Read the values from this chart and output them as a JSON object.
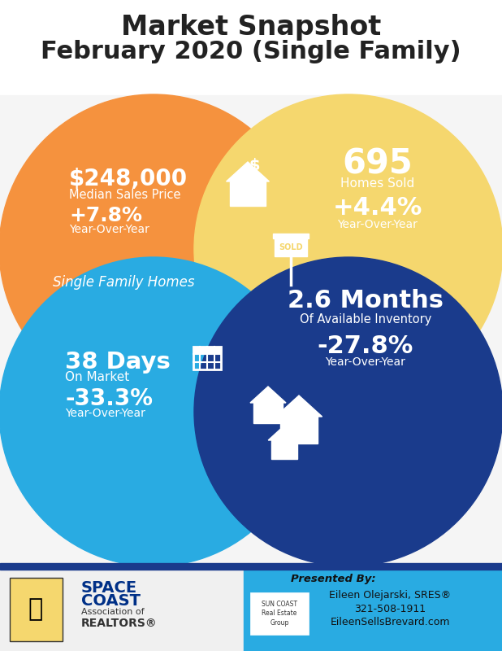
{
  "title_line1": "Market Snapshot",
  "title_line2": "February 2020 (Single Family)",
  "title_fontsize": 26,
  "title_color": "#222222",
  "bg_color": "#ffffff",
  "orange_color": "#F5923E",
  "yellow_color": "#F5D76E",
  "blue_light_color": "#29ABE2",
  "blue_dark_color": "#1A3B8C",
  "white": "#ffffff",
  "top_left": {
    "big_text": "$248,000",
    "sub_text": "Median Sales Price",
    "pct_text": "+7.8%",
    "pct_sub": "Year-Over-Year",
    "label": "Single Family Homes"
  },
  "top_right": {
    "big_text": "695",
    "sub_text": "Homes Sold",
    "pct_text": "+4.4%",
    "pct_sub": "Year-Over-Year"
  },
  "bottom_left": {
    "big_text": "38 Days",
    "sub_text": "On Market",
    "pct_text": "-33.3%",
    "pct_sub": "Year-Over-Year"
  },
  "bottom_right": {
    "big_text": "2.6 Months",
    "sub_text": "Of Available Inventory",
    "pct_text": "-27.8%",
    "pct_sub": "Year-Over-Year"
  },
  "footer": {
    "right_bg": "#29ABE2",
    "presented_by": "Presented By:",
    "name": "Eileen Olejarski, SRES®",
    "phone": "321-508-1911",
    "website": "EileenSellsBrevard.com"
  }
}
